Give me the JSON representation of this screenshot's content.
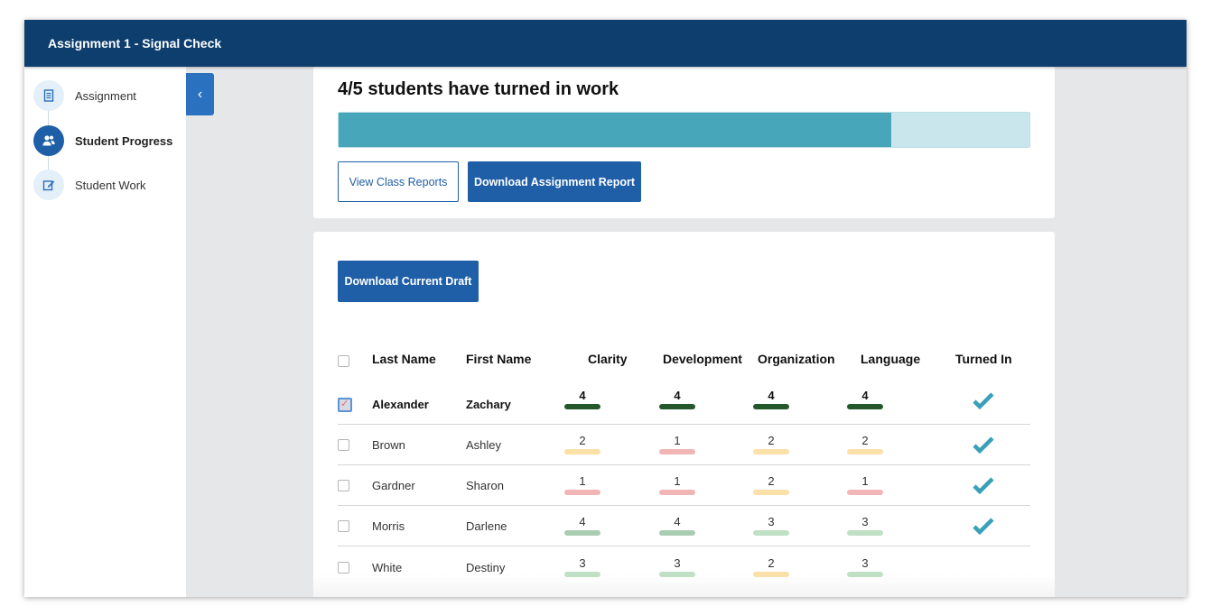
{
  "header": {
    "title": "Assignment 1 - Signal Check"
  },
  "sidebar": {
    "items": [
      {
        "label": "Assignment",
        "icon": "document-icon",
        "active": false
      },
      {
        "label": "Student Progress",
        "icon": "users-icon",
        "active": true
      },
      {
        "label": "Student Work",
        "icon": "edit-icon",
        "active": false
      }
    ]
  },
  "progress": {
    "title": "4/5 students have turned in work",
    "turned_in": 4,
    "total": 5,
    "fill_color": "#47a6ba",
    "track_color": "#c8e6ec"
  },
  "buttons": {
    "view_class_reports": "View Class Reports",
    "download_assignment_report": "Download Assignment Report",
    "download_current_draft": "Download Current Draft"
  },
  "table": {
    "headers": {
      "last_name": "Last Name",
      "first_name": "First Name",
      "clarity": "Clarity",
      "development": "Development",
      "organization": "Organization",
      "language": "Language",
      "turned_in": "Turned In"
    },
    "score_colors": {
      "1": "#f2b5b5",
      "2": "#fbe0a8",
      "3": "#bfe0c4",
      "4_bold": "#24572a",
      "4": "#a9cdb1"
    },
    "rows": [
      {
        "last": "Alexander",
        "first": "Zachary",
        "clarity": "4",
        "development": "4",
        "organization": "4",
        "language": "4",
        "turned_in": true,
        "checked": true,
        "selected": true
      },
      {
        "last": "Brown",
        "first": "Ashley",
        "clarity": "2",
        "development": "1",
        "organization": "2",
        "language": "2",
        "turned_in": true,
        "checked": false,
        "selected": false
      },
      {
        "last": "Gardner",
        "first": "Sharon",
        "clarity": "1",
        "development": "1",
        "organization": "2",
        "language": "1",
        "turned_in": true,
        "checked": false,
        "selected": false
      },
      {
        "last": "Morris",
        "first": "Darlene",
        "clarity": "4",
        "development": "4",
        "organization": "3",
        "language": "3",
        "turned_in": true,
        "checked": false,
        "selected": false
      },
      {
        "last": "White",
        "first": "Destiny",
        "clarity": "3",
        "development": "3",
        "organization": "2",
        "language": "3",
        "turned_in": false,
        "checked": false,
        "selected": false
      }
    ]
  }
}
